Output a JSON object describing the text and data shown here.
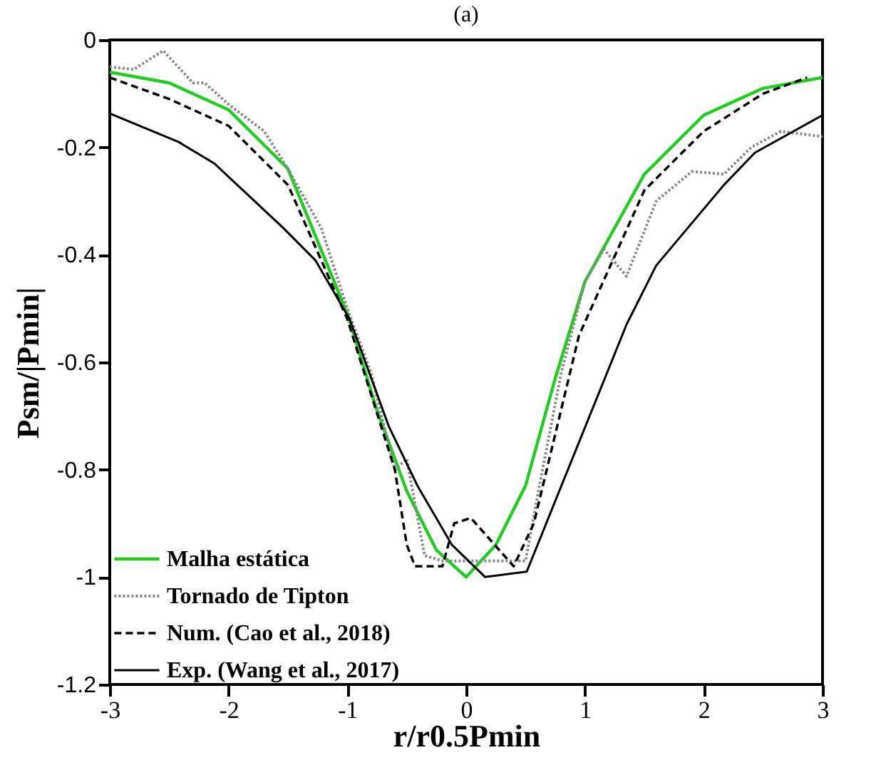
{
  "chart_data": {
    "type": "line",
    "title": "(a)",
    "xlabel": "r/r0.5Pmin",
    "ylabel": "Psm/|Pmin|",
    "xlim": [
      -3,
      3
    ],
    "xticks": [
      -3,
      -2,
      -1,
      0,
      1,
      2,
      3
    ],
    "ylim": [
      -1.2,
      0
    ],
    "yticks": [
      -1.2,
      {
        "value": -1,
        "label": "-1"
      },
      -0.8,
      -0.6,
      -0.4,
      -0.2,
      {
        "value": 0,
        "label": "0"
      }
    ],
    "grid": false,
    "legend": "bottom left",
    "marker": "none",
    "series": [
      {
        "name": "Malha estática",
        "color": "#22cc22",
        "line_style": "solid",
        "x": [
          -3,
          -2.5,
          -2,
          -1.5,
          -1,
          -0.75,
          -0.5,
          -0.25,
          0,
          0.25,
          0.5,
          0.75,
          1,
          1.5,
          2,
          2.5,
          3
        ],
        "values": [
          -0.06,
          -0.08,
          -0.13,
          -0.24,
          -0.51,
          -0.69,
          -0.84,
          -0.95,
          -1.0,
          -0.94,
          -0.83,
          -0.63,
          -0.45,
          -0.25,
          -0.14,
          -0.09,
          -0.07
        ]
      },
      {
        "name": "Tornado de Tipton",
        "color": "#888888",
        "line_style": "dotted",
        "x": [
          -3,
          -2.8,
          -2.55,
          -2.3,
          -2.2,
          -2,
          -1.7,
          -1.5,
          -1.22,
          -1,
          -0.8,
          -0.6,
          -0.5,
          -0.35,
          -0.2,
          0,
          0.2,
          0.5,
          0.6,
          0.8,
          1.0,
          1.16,
          1.35,
          1.6,
          1.9,
          2.17,
          2.4,
          2.65,
          3
        ],
        "values": [
          -0.05,
          -0.055,
          -0.02,
          -0.08,
          -0.08,
          -0.12,
          -0.17,
          -0.24,
          -0.35,
          -0.5,
          -0.62,
          -0.8,
          -0.78,
          -0.96,
          -0.97,
          -0.97,
          -0.97,
          -0.97,
          -0.85,
          -0.62,
          -0.45,
          -0.39,
          -0.44,
          -0.3,
          -0.245,
          -0.25,
          -0.2,
          -0.17,
          -0.18
        ]
      },
      {
        "name": "Num. (Cao et al., 2018)",
        "color": "#000000",
        "line_style": "dashed",
        "x": [
          -3,
          -2.5,
          -2,
          -1.5,
          -1,
          -0.6,
          -0.5,
          -0.43,
          -0.2,
          -0.1,
          0.04,
          0.4,
          0.57,
          0.95,
          1.5,
          2,
          2.5,
          2.87
        ],
        "values": [
          -0.07,
          -0.11,
          -0.16,
          -0.27,
          -0.52,
          -0.8,
          -0.94,
          -0.98,
          -0.98,
          -0.9,
          -0.89,
          -0.98,
          -0.9,
          -0.55,
          -0.28,
          -0.17,
          -0.1,
          -0.07
        ]
      },
      {
        "name": "Exp. (Wang et al., 2017)",
        "color": "#000000",
        "line_style": "solid",
        "x": [
          -3,
          -2.42,
          -2.12,
          -1.54,
          -1.27,
          -0.98,
          -0.65,
          -0.41,
          -0.12,
          0.16,
          0.51,
          1.35,
          1.6,
          2.17,
          2.43,
          3
        ],
        "values": [
          -0.137,
          -0.19,
          -0.23,
          -0.35,
          -0.41,
          -0.52,
          -0.72,
          -0.83,
          -0.94,
          -1.0,
          -0.99,
          -0.53,
          -0.42,
          -0.27,
          -0.21,
          -0.14
        ]
      }
    ]
  }
}
